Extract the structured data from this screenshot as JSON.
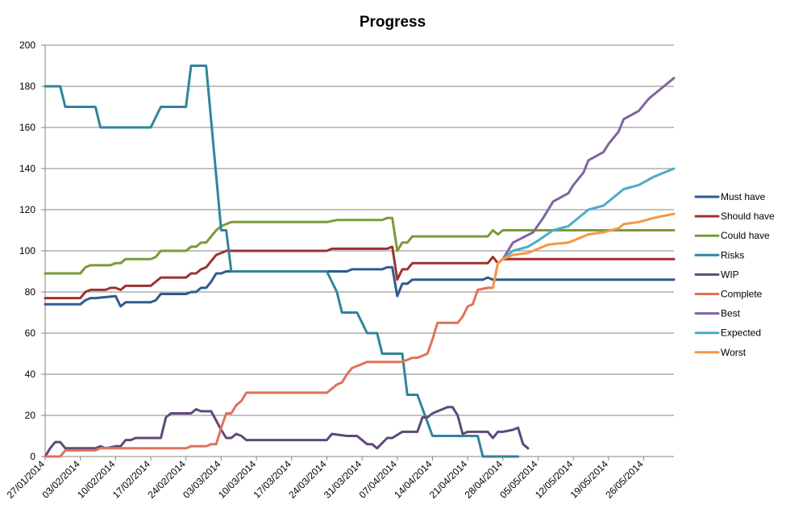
{
  "chart_data": {
    "type": "line",
    "title": "Progress",
    "xlabel": "",
    "ylabel": "",
    "ylim": [
      0,
      200
    ],
    "yticks": [
      0,
      20,
      40,
      60,
      80,
      100,
      120,
      140,
      160,
      180,
      200
    ],
    "xlim": [
      "27/01/2014",
      "01/06/2014"
    ],
    "xtick_labels": [
      "27/01/2014",
      "03/02/2014",
      "10/02/2014",
      "17/02/2014",
      "24/02/2014",
      "03/03/2014",
      "10/03/2014",
      "17/03/2014",
      "24/03/2014",
      "31/03/2014",
      "07/04/2014",
      "14/04/2014",
      "21/04/2014",
      "28/04/2014",
      "05/05/2014",
      "12/05/2014",
      "19/05/2014",
      "26/05/2014"
    ],
    "grid": "horizontal",
    "legend_position": "right",
    "series": [
      {
        "name": "Must have",
        "color": "#2E5B8F",
        "points": [
          [
            "27/01/2014",
            74
          ],
          [
            "03/02/2014",
            74
          ],
          [
            "04/02/2014",
            76
          ],
          [
            "05/02/2014",
            77
          ],
          [
            "06/02/2014",
            77
          ],
          [
            "08/02/2014",
            77.5
          ],
          [
            "10/02/2014",
            78
          ],
          [
            "11/02/2014",
            73
          ],
          [
            "12/02/2014",
            75
          ],
          [
            "17/02/2014",
            75
          ],
          [
            "18/02/2014",
            76
          ],
          [
            "19/02/2014",
            79
          ],
          [
            "24/02/2014",
            79
          ],
          [
            "25/02/2014",
            80
          ],
          [
            "26/02/2014",
            80
          ],
          [
            "27/02/2014",
            82
          ],
          [
            "28/02/2014",
            82
          ],
          [
            "01/03/2014",
            85
          ],
          [
            "02/03/2014",
            89
          ],
          [
            "03/03/2014",
            89
          ],
          [
            "04/03/2014",
            90
          ],
          [
            "28/03/2014",
            90
          ],
          [
            "29/03/2014",
            91
          ],
          [
            "03/04/2014",
            91
          ],
          [
            "04/04/2014",
            91
          ],
          [
            "05/04/2014",
            92
          ],
          [
            "06/04/2014",
            92
          ],
          [
            "07/04/2014",
            78
          ],
          [
            "08/04/2014",
            84
          ],
          [
            "09/04/2014",
            84
          ],
          [
            "10/04/2014",
            86
          ],
          [
            "24/04/2014",
            86
          ],
          [
            "25/04/2014",
            87
          ],
          [
            "26/04/2014",
            86
          ],
          [
            "01/06/2014",
            86
          ]
        ]
      },
      {
        "name": "Should have",
        "color": "#9B3330",
        "points": [
          [
            "27/01/2014",
            77
          ],
          [
            "03/02/2014",
            77
          ],
          [
            "04/02/2014",
            80
          ],
          [
            "05/02/2014",
            81
          ],
          [
            "08/02/2014",
            81
          ],
          [
            "09/02/2014",
            82
          ],
          [
            "10/02/2014",
            82
          ],
          [
            "11/02/2014",
            81
          ],
          [
            "12/02/2014",
            83
          ],
          [
            "17/02/2014",
            83
          ],
          [
            "19/02/2014",
            87
          ],
          [
            "24/02/2014",
            87
          ],
          [
            "25/02/2014",
            89
          ],
          [
            "26/02/2014",
            89
          ],
          [
            "27/02/2014",
            91
          ],
          [
            "28/02/2014",
            92
          ],
          [
            "02/03/2014",
            98
          ],
          [
            "03/03/2014",
            99
          ],
          [
            "04/03/2014",
            100
          ],
          [
            "24/03/2014",
            100
          ],
          [
            "25/03/2014",
            101
          ],
          [
            "05/04/2014",
            101
          ],
          [
            "06/04/2014",
            102
          ],
          [
            "07/04/2014",
            86
          ],
          [
            "08/04/2014",
            91
          ],
          [
            "09/04/2014",
            91
          ],
          [
            "10/04/2014",
            94
          ],
          [
            "25/04/2014",
            94
          ],
          [
            "26/04/2014",
            97
          ],
          [
            "27/04/2014",
            94
          ],
          [
            "28/04/2014",
            96
          ],
          [
            "01/06/2014",
            96
          ]
        ]
      },
      {
        "name": "Could have",
        "color": "#7A9A3A",
        "points": [
          [
            "27/01/2014",
            89
          ],
          [
            "03/02/2014",
            89
          ],
          [
            "04/02/2014",
            92
          ],
          [
            "05/02/2014",
            93
          ],
          [
            "09/02/2014",
            93
          ],
          [
            "10/02/2014",
            94
          ],
          [
            "11/02/2014",
            94
          ],
          [
            "12/02/2014",
            96
          ],
          [
            "17/02/2014",
            96
          ],
          [
            "18/02/2014",
            97
          ],
          [
            "19/02/2014",
            100
          ],
          [
            "24/02/2014",
            100
          ],
          [
            "25/02/2014",
            102
          ],
          [
            "26/02/2014",
            102
          ],
          [
            "27/02/2014",
            104
          ],
          [
            "28/02/2014",
            104
          ],
          [
            "02/03/2014",
            110
          ],
          [
            "03/03/2014",
            112
          ],
          [
            "04/03/2014",
            113
          ],
          [
            "05/03/2014",
            114
          ],
          [
            "24/03/2014",
            114
          ],
          [
            "26/03/2014",
            115
          ],
          [
            "04/04/2014",
            115
          ],
          [
            "05/04/2014",
            116
          ],
          [
            "06/04/2014",
            116
          ],
          [
            "07/04/2014",
            100
          ],
          [
            "08/04/2014",
            104
          ],
          [
            "09/04/2014",
            104
          ],
          [
            "10/04/2014",
            107
          ],
          [
            "25/04/2014",
            107
          ],
          [
            "26/04/2014",
            110
          ],
          [
            "27/04/2014",
            108
          ],
          [
            "28/04/2014",
            110
          ],
          [
            "01/06/2014",
            110
          ]
        ]
      },
      {
        "name": "Risks",
        "color": "#31849B",
        "points": [
          [
            "27/01/2014",
            180
          ],
          [
            "30/01/2014",
            180
          ],
          [
            "31/01/2014",
            170
          ],
          [
            "06/02/2014",
            170
          ],
          [
            "07/02/2014",
            160
          ],
          [
            "17/02/2014",
            160
          ],
          [
            "19/02/2014",
            170
          ],
          [
            "24/02/2014",
            170
          ],
          [
            "25/02/2014",
            190
          ],
          [
            "28/02/2014",
            190
          ],
          [
            "03/03/2014",
            110
          ],
          [
            "04/03/2014",
            110
          ],
          [
            "05/03/2014",
            90
          ],
          [
            "24/03/2014",
            90
          ],
          [
            "26/03/2014",
            80
          ],
          [
            "27/03/2014",
            70
          ],
          [
            "30/03/2014",
            70
          ],
          [
            "01/04/2014",
            60
          ],
          [
            "03/04/2014",
            60
          ],
          [
            "04/04/2014",
            50
          ],
          [
            "08/04/2014",
            50
          ],
          [
            "09/04/2014",
            30
          ],
          [
            "11/04/2014",
            30
          ],
          [
            "14/04/2014",
            10
          ],
          [
            "23/04/2014",
            10
          ],
          [
            "24/04/2014",
            0
          ],
          [
            "01/05/2014",
            0
          ]
        ]
      },
      {
        "name": "WIP",
        "color": "#5F497A",
        "points": [
          [
            "27/01/2014",
            0
          ],
          [
            "28/01/2014",
            4
          ],
          [
            "29/01/2014",
            7
          ],
          [
            "30/01/2014",
            7
          ],
          [
            "31/01/2014",
            4
          ],
          [
            "06/02/2014",
            4
          ],
          [
            "07/02/2014",
            5
          ],
          [
            "08/02/2014",
            4
          ],
          [
            "10/02/2014",
            5
          ],
          [
            "11/02/2014",
            5
          ],
          [
            "12/02/2014",
            8
          ],
          [
            "13/02/2014",
            8
          ],
          [
            "14/02/2014",
            9
          ],
          [
            "19/02/2014",
            9
          ],
          [
            "20/02/2014",
            19
          ],
          [
            "21/02/2014",
            21
          ],
          [
            "25/02/2014",
            21
          ],
          [
            "26/02/2014",
            23
          ],
          [
            "27/02/2014",
            22
          ],
          [
            "01/03/2014",
            22
          ],
          [
            "03/03/2014",
            13
          ],
          [
            "04/03/2014",
            9
          ],
          [
            "05/03/2014",
            9
          ],
          [
            "06/03/2014",
            11
          ],
          [
            "07/03/2014",
            10
          ],
          [
            "08/03/2014",
            8
          ],
          [
            "24/03/2014",
            8
          ],
          [
            "25/03/2014",
            11
          ],
          [
            "28/03/2014",
            10
          ],
          [
            "30/03/2014",
            10
          ],
          [
            "01/04/2014",
            6
          ],
          [
            "02/04/2014",
            6
          ],
          [
            "03/04/2014",
            4
          ],
          [
            "05/04/2014",
            9
          ],
          [
            "06/04/2014",
            9
          ],
          [
            "08/04/2014",
            12
          ],
          [
            "11/04/2014",
            12
          ],
          [
            "12/04/2014",
            19
          ],
          [
            "13/04/2014",
            19
          ],
          [
            "14/04/2014",
            21
          ],
          [
            "17/04/2014",
            24
          ],
          [
            "18/04/2014",
            24
          ],
          [
            "19/04/2014",
            20
          ],
          [
            "20/04/2014",
            11
          ],
          [
            "21/04/2014",
            12
          ],
          [
            "25/04/2014",
            12
          ],
          [
            "26/04/2014",
            9
          ],
          [
            "27/04/2014",
            12
          ],
          [
            "28/04/2014",
            12
          ],
          [
            "30/04/2014",
            13
          ],
          [
            "01/05/2014",
            14
          ],
          [
            "02/05/2014",
            6
          ],
          [
            "03/05/2014",
            4
          ]
        ]
      },
      {
        "name": "Complete",
        "color": "#E0725C",
        "points": [
          [
            "27/01/2014",
            0
          ],
          [
            "30/01/2014",
            0
          ],
          [
            "31/01/2014",
            3
          ],
          [
            "06/02/2014",
            3
          ],
          [
            "07/02/2014",
            4
          ],
          [
            "24/02/2014",
            4
          ],
          [
            "25/02/2014",
            5
          ],
          [
            "28/02/2014",
            5
          ],
          [
            "01/03/2014",
            6
          ],
          [
            "02/03/2014",
            6
          ],
          [
            "03/03/2014",
            14
          ],
          [
            "04/03/2014",
            21
          ],
          [
            "05/03/2014",
            21
          ],
          [
            "06/03/2014",
            25
          ],
          [
            "07/03/2014",
            27
          ],
          [
            "08/03/2014",
            31
          ],
          [
            "24/03/2014",
            31
          ],
          [
            "25/03/2014",
            33
          ],
          [
            "26/03/2014",
            35
          ],
          [
            "27/03/2014",
            36
          ],
          [
            "28/03/2014",
            40
          ],
          [
            "29/03/2014",
            43
          ],
          [
            "30/03/2014",
            44
          ],
          [
            "31/03/2014",
            45
          ],
          [
            "01/04/2014",
            46
          ],
          [
            "08/04/2014",
            46
          ],
          [
            "09/04/2014",
            47
          ],
          [
            "10/04/2014",
            48
          ],
          [
            "11/04/2014",
            48
          ],
          [
            "12/04/2014",
            49
          ],
          [
            "13/04/2014",
            50
          ],
          [
            "14/04/2014",
            57
          ],
          [
            "15/04/2014",
            65
          ],
          [
            "19/04/2014",
            65
          ],
          [
            "20/04/2014",
            68
          ],
          [
            "21/04/2014",
            73
          ],
          [
            "22/04/2014",
            74
          ],
          [
            "23/04/2014",
            81
          ],
          [
            "25/04/2014",
            82
          ],
          [
            "26/04/2014",
            82
          ],
          [
            "27/04/2014",
            94
          ],
          [
            "28/04/2014",
            96
          ]
        ]
      },
      {
        "name": "Best",
        "color": "#8064A2",
        "points": [
          [
            "28/04/2014",
            96
          ],
          [
            "30/04/2014",
            104
          ],
          [
            "04/05/2014",
            109
          ],
          [
            "06/05/2014",
            116
          ],
          [
            "08/05/2014",
            124
          ],
          [
            "11/05/2014",
            128
          ],
          [
            "12/05/2014",
            132
          ],
          [
            "14/05/2014",
            138
          ],
          [
            "15/05/2014",
            144
          ],
          [
            "18/05/2014",
            148
          ],
          [
            "19/05/2014",
            152
          ],
          [
            "21/05/2014",
            158
          ],
          [
            "22/05/2014",
            164
          ],
          [
            "25/05/2014",
            168
          ],
          [
            "27/05/2014",
            174
          ],
          [
            "30/05/2014",
            180
          ],
          [
            "01/06/2014",
            184
          ]
        ]
      },
      {
        "name": "Expected",
        "color": "#4BACC6",
        "points": [
          [
            "28/04/2014",
            96
          ],
          [
            "30/04/2014",
            100
          ],
          [
            "03/05/2014",
            102
          ],
          [
            "05/05/2014",
            105
          ],
          [
            "08/05/2014",
            110
          ],
          [
            "11/05/2014",
            112
          ],
          [
            "14/05/2014",
            118
          ],
          [
            "15/05/2014",
            120
          ],
          [
            "18/05/2014",
            122
          ],
          [
            "21/05/2014",
            128
          ],
          [
            "22/05/2014",
            130
          ],
          [
            "25/05/2014",
            132
          ],
          [
            "28/05/2014",
            136
          ],
          [
            "01/06/2014",
            140
          ]
        ]
      },
      {
        "name": "Worst",
        "color": "#F79646",
        "points": [
          [
            "26/04/2014",
            82
          ],
          [
            "27/04/2014",
            94
          ],
          [
            "28/04/2014",
            96
          ],
          [
            "29/04/2014",
            97
          ],
          [
            "30/04/2014",
            98
          ],
          [
            "03/05/2014",
            99
          ],
          [
            "05/05/2014",
            101
          ],
          [
            "07/05/2014",
            103
          ],
          [
            "11/05/2014",
            104
          ],
          [
            "12/05/2014",
            105
          ],
          [
            "15/05/2014",
            108
          ],
          [
            "18/05/2014",
            109
          ],
          [
            "21/05/2014",
            111
          ],
          [
            "22/05/2014",
            113
          ],
          [
            "25/05/2014",
            114
          ],
          [
            "28/05/2014",
            116
          ],
          [
            "01/06/2014",
            118
          ]
        ]
      }
    ]
  }
}
